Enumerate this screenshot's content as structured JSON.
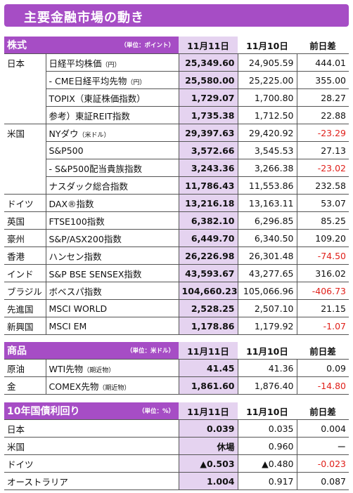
{
  "title": "主要金融市場の動き",
  "equities": {
    "section": "株式",
    "unit": "（単位：ポイント）",
    "cols": [
      "11月11日",
      "11月10日",
      "前日差"
    ],
    "rows": [
      {
        "region": "日本",
        "name": "日経平均株価",
        "note": "（円）",
        "v1": "25,349.60",
        "v2": "24,905.59",
        "v3": "444.01",
        "neg": false
      },
      {
        "region": "",
        "name": "- CME日経平均先物",
        "note": "（円）",
        "v1": "25,580.00",
        "v2": "25,225.00",
        "v3": "355.00",
        "neg": false
      },
      {
        "region": "",
        "name": "TOPIX（東証株価指数）",
        "note": "",
        "v1": "1,729.07",
        "v2": "1,700.80",
        "v3": "28.27",
        "neg": false
      },
      {
        "region": "",
        "name": "参考）東証REIT指数",
        "note": "",
        "v1": "1,735.38",
        "v2": "1,712.50",
        "v3": "22.88",
        "neg": false
      },
      {
        "region": "米国",
        "name": "NYダウ",
        "note": "（米ドル）",
        "v1": "29,397.63",
        "v2": "29,420.92",
        "v3": "-23.29",
        "neg": true
      },
      {
        "region": "",
        "name": "S&P500",
        "note": "",
        "v1": "3,572.66",
        "v2": "3,545.53",
        "v3": "27.13",
        "neg": false
      },
      {
        "region": "",
        "name": "- S&P500配当貴族指数",
        "note": "",
        "v1": "3,243.36",
        "v2": "3,266.38",
        "v3": "-23.02",
        "neg": true
      },
      {
        "region": "",
        "name": "ナスダック総合指数",
        "note": "",
        "v1": "11,786.43",
        "v2": "11,553.86",
        "v3": "232.58",
        "neg": false
      },
      {
        "region": "ドイツ",
        "name": "DAX®指数",
        "note": "",
        "v1": "13,216.18",
        "v2": "13,163.11",
        "v3": "53.07",
        "neg": false
      },
      {
        "region": "英国",
        "name": "FTSE100指数",
        "note": "",
        "v1": "6,382.10",
        "v2": "6,296.85",
        "v3": "85.25",
        "neg": false
      },
      {
        "region": "豪州",
        "name": "S&P/ASX200指数",
        "note": "",
        "v1": "6,449.70",
        "v2": "6,340.50",
        "v3": "109.20",
        "neg": false
      },
      {
        "region": "香港",
        "name": "ハンセン指数",
        "note": "",
        "v1": "26,226.98",
        "v2": "26,301.48",
        "v3": "-74.50",
        "neg": true
      },
      {
        "region": "インド",
        "name": "S&P BSE SENSEX指数",
        "note": "",
        "v1": "43,593.67",
        "v2": "43,277.65",
        "v3": "316.02",
        "neg": false
      },
      {
        "region": "ブラジル",
        "name": "ボベスパ指数",
        "note": "",
        "v1": "104,660.23",
        "v2": "105,066.96",
        "v3": "-406.73",
        "neg": true
      },
      {
        "region": "先進国",
        "name": "MSCI WORLD",
        "note": "",
        "v1": "2,528.25",
        "v2": "2,507.10",
        "v3": "21.15",
        "neg": false
      },
      {
        "region": "新興国",
        "name": "MSCI EM",
        "note": "",
        "v1": "1,178.86",
        "v2": "1,179.92",
        "v3": "-1.07",
        "neg": true
      }
    ]
  },
  "commodities": {
    "section": "商品",
    "unit": "（単位：米ドル）",
    "cols": [
      "11月11日",
      "11月10日",
      "前日差"
    ],
    "rows": [
      {
        "region": "原油",
        "name": "WTI先物",
        "note": "（期近物）",
        "v1": "41.45",
        "v2": "41.36",
        "v3": "0.09",
        "neg": false
      },
      {
        "region": "金",
        "name": "COMEX先物",
        "note": "（期近物）",
        "v1": "1,861.60",
        "v2": "1,876.40",
        "v3": "-14.80",
        "neg": true
      }
    ]
  },
  "bonds": {
    "section": "10年国債利回り",
    "unit": "（単位：%）",
    "cols": [
      "11月11日",
      "11月10日",
      "前日差"
    ],
    "rows": [
      {
        "region": "日本",
        "v1": "0.039",
        "v2": "0.035",
        "v3": "0.004",
        "neg": false
      },
      {
        "region": "米国",
        "v1": "休場",
        "v2": "0.960",
        "v3": "ー",
        "neg": false
      },
      {
        "region": "ドイツ",
        "v1": "▲0.503",
        "v2": "▲0.480",
        "v3": "-0.023",
        "neg": true
      },
      {
        "region": "オーストラリア",
        "v1": "1.004",
        "v2": "0.917",
        "v3": "0.087",
        "neg": false
      }
    ]
  }
}
